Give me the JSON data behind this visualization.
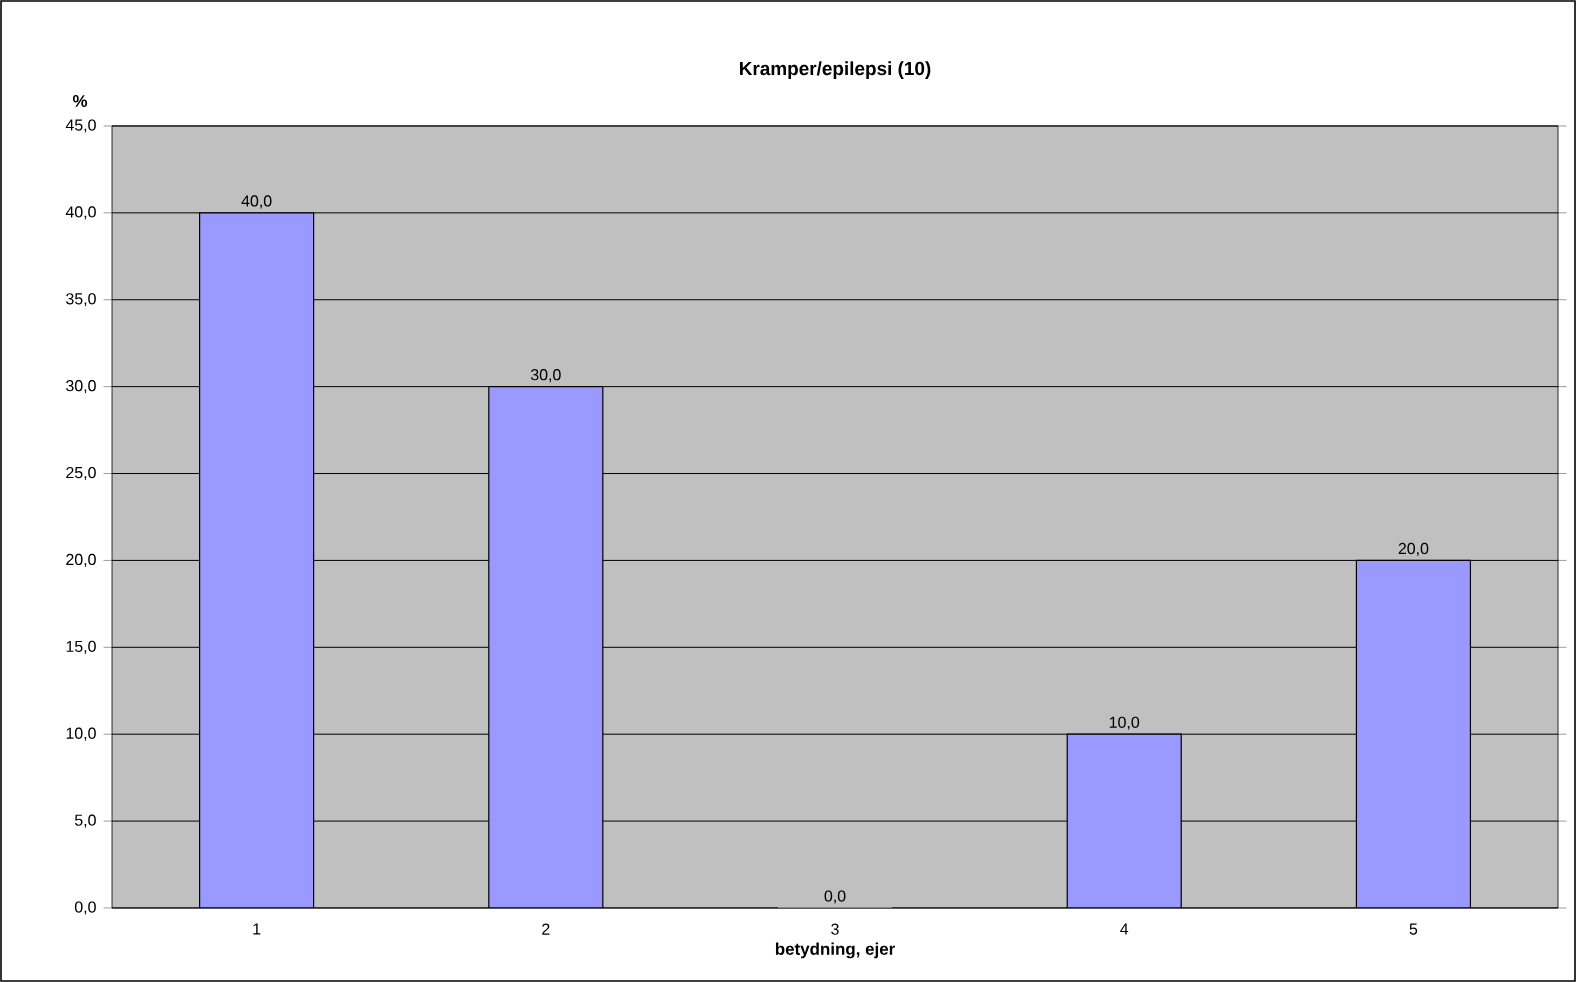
{
  "chart_data": {
    "type": "bar",
    "title": "Kramper/epilepsi (10)",
    "xlabel": "betydning, ejer",
    "ylabel": "%",
    "categories": [
      "1",
      "2",
      "3",
      "4",
      "5"
    ],
    "values": [
      40.0,
      30.0,
      0.0,
      10.0,
      20.0
    ],
    "value_labels": [
      "40,0",
      "30,0",
      "0,0",
      "10,0",
      "20,0"
    ],
    "color": "#9999ff",
    "ylim": [
      0,
      45
    ],
    "yticks": [
      {
        "value": 0,
        "label": "0,0"
      },
      {
        "value": 5,
        "label": "5,0"
      },
      {
        "value": 10,
        "label": "10,0"
      },
      {
        "value": 15,
        "label": "15,0"
      },
      {
        "value": 20,
        "label": "20,0"
      },
      {
        "value": 25,
        "label": "25,0"
      },
      {
        "value": 30,
        "label": "30,0"
      },
      {
        "value": 35,
        "label": "35,0"
      },
      {
        "value": 40,
        "label": "40,0"
      },
      {
        "value": 45,
        "label": "45,0"
      }
    ],
    "grid": "y"
  }
}
